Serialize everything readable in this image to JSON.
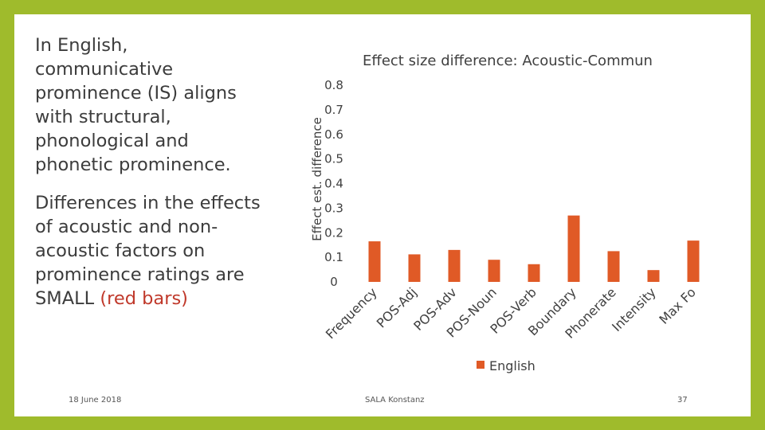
{
  "slide": {
    "paragraph1": "In English, communicative prominence (IS) aligns with structural, phonological and phonetic prominence.",
    "paragraph2_main": "Differences in the effects of acoustic and non-acoustic factors on prominence ratings are SMALL",
    "paragraph2_highlight": "(red bars)",
    "footer_date": "18 June 2018",
    "footer_center": "SALA Konstanz",
    "page_number": "37",
    "colors": {
      "frame": "#9fbb2c",
      "bar": "#e05a26",
      "highlight": "#c0392b"
    }
  },
  "chart_data": {
    "type": "bar",
    "title": "Effect size difference: Acoustic-Commun",
    "ylabel": "Effect est. difference",
    "xlabel": "",
    "ylim": [
      0,
      0.8
    ],
    "yticks": [
      "0",
      "0.1",
      "0.2",
      "0.3",
      "0.4",
      "0.5",
      "0.6",
      "0.7",
      "0.8"
    ],
    "grid": false,
    "legend_position": "bottom",
    "categories": [
      "Frequency",
      "POS-Adj",
      "POS-Adv",
      "POS-Noun",
      "POS-Verb",
      "Boundary",
      "Phonerate",
      "Intensity",
      "Max F0"
    ],
    "tick_labels": [
      "Frequency",
      "POS-Adj",
      "POS-Adv",
      "POS-Noun",
      "POS-Verb",
      "Boundary",
      "Phonerate",
      "Intensity",
      "Max Fo"
    ],
    "series": [
      {
        "name": "English",
        "values": [
          0.165,
          0.112,
          0.13,
          0.09,
          0.072,
          0.27,
          0.125,
          0.048,
          0.168
        ]
      }
    ]
  }
}
